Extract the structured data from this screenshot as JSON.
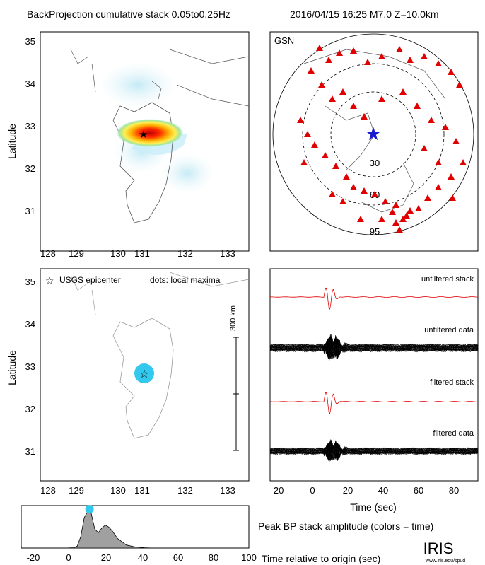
{
  "header": {
    "title": "BackProjection cumulative stack 0.05to0.25Hz",
    "event": "2016/04/15 16:25  M7.0  Z=10.0km"
  },
  "map_top": {
    "ylabel": "Latitude",
    "lat_ticks": [
      "35",
      "34",
      "33",
      "32",
      "31"
    ],
    "lon_ticks": [
      "128",
      "129",
      "130",
      "131",
      "132",
      "133"
    ]
  },
  "gsn": {
    "network": "GSN",
    "ring_labels": [
      "30",
      "60",
      "95"
    ],
    "colors": {
      "station": "#e00000",
      "epicenter": "#1a1ad0"
    }
  },
  "map_bottom": {
    "ylabel": "Latitude",
    "legend_epicenter": "USGS epicenter",
    "legend_dots": "dots: local maxima",
    "scale_label": "300 km",
    "lat_ticks": [
      "35",
      "34",
      "33",
      "32",
      "31"
    ],
    "lon_ticks": [
      "128",
      "129",
      "130",
      "131",
      "132",
      "133"
    ],
    "colors": {
      "maxima": "#33c8ee"
    }
  },
  "traces": {
    "labels": [
      "unfiltered stack",
      "unfiltered data",
      "filtered stack",
      "filtered data"
    ],
    "x_ticks": [
      "-20",
      "0",
      "20",
      "40",
      "60",
      "80"
    ],
    "xlabel": "Time (sec)",
    "colors": {
      "stack": "#e00000",
      "data": "#000000"
    }
  },
  "peak": {
    "caption": "Peak BP stack amplitude (colors = time)",
    "x_ticks": [
      "-20",
      "0",
      "20",
      "40",
      "60",
      "80",
      "100"
    ],
    "xlabel": "Time relative to origin (sec)",
    "colors": {
      "fill": "#a0a0a0",
      "peak_marker": "#33c8ee"
    }
  },
  "logo": {
    "name": "IRIS",
    "url": "www.iris.edu/spud"
  },
  "chart_data": {
    "type": "area",
    "title": "Peak BP stack amplitude (colors = time)",
    "xlabel": "Time relative to origin (sec)",
    "ylabel": "",
    "xlim": [
      -30,
      100
    ],
    "ylim": [
      0,
      1
    ],
    "x": [
      -10,
      -5,
      0,
      2,
      4,
      6,
      8,
      9,
      10,
      12,
      14,
      16,
      18,
      20,
      22,
      25,
      28,
      30,
      35,
      40,
      45
    ],
    "series": [
      {
        "values": [
          0.0,
          0.0,
          0.01,
          0.05,
          0.3,
          0.8,
          0.96,
          0.98,
          0.9,
          0.5,
          0.4,
          0.52,
          0.6,
          0.55,
          0.45,
          0.25,
          0.15,
          0.08,
          0.03,
          0.01,
          0.0
        ]
      }
    ]
  }
}
